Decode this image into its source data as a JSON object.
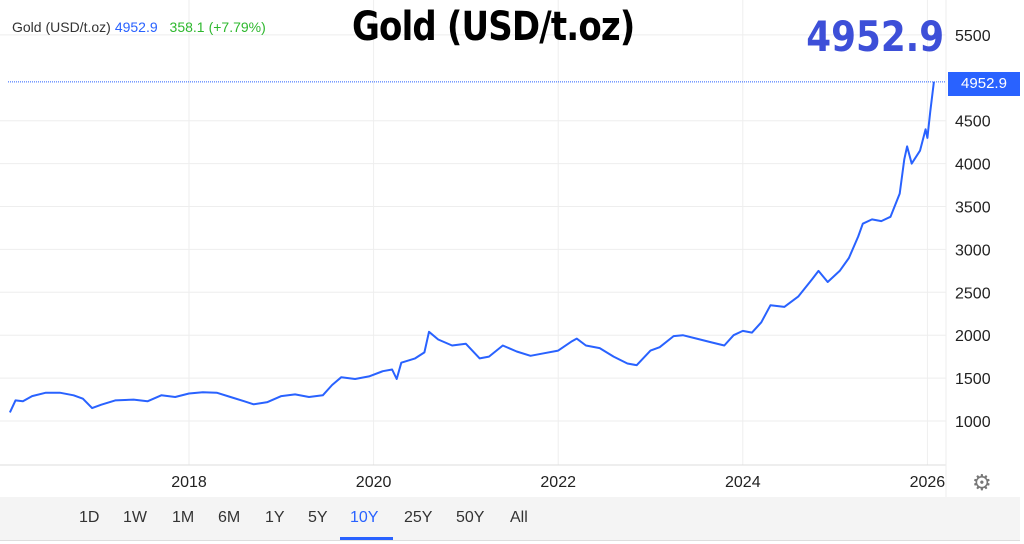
{
  "header": {
    "symbol": "Gold (USD/t.oz)",
    "price": "4952.9",
    "change": "358.1",
    "change_pct": "(+7.79%)",
    "big_title": "Gold (USD/t.oz)",
    "big_price": "4952.9",
    "price_tag": "4952.9"
  },
  "colors": {
    "line": "#2962ff",
    "price": "#2962ff",
    "change": "#2eb82e",
    "big_price": "#3d4fd8"
  },
  "toolbar": {
    "ranges": [
      "1D",
      "1W",
      "1M",
      "6M",
      "1Y",
      "5Y",
      "10Y",
      "25Y",
      "50Y",
      "All"
    ],
    "active": "10Y",
    "settings_icon": "gear-icon"
  },
  "chart_data": {
    "type": "line",
    "title": "Gold (USD/t.oz)",
    "xlabel": "",
    "ylabel": "",
    "xlim": [
      2016.0,
      2026.2
    ],
    "ylim": [
      500,
      5850
    ],
    "x_ticks": [
      "2018",
      "2020",
      "2022",
      "2024",
      "2026"
    ],
    "y_ticks": [
      "1000",
      "1500",
      "2000",
      "2500",
      "3000",
      "3500",
      "4000",
      "4500",
      "5500"
    ],
    "grid": true,
    "last_value": 4952.9,
    "series": [
      {
        "points": [
          [
            2016.06,
            1100
          ],
          [
            2016.12,
            1240
          ],
          [
            2016.2,
            1230
          ],
          [
            2016.3,
            1290
          ],
          [
            2016.45,
            1330
          ],
          [
            2016.6,
            1330
          ],
          [
            2016.75,
            1300
          ],
          [
            2016.85,
            1260
          ],
          [
            2016.95,
            1150
          ],
          [
            2017.05,
            1190
          ],
          [
            2017.2,
            1240
          ],
          [
            2017.4,
            1250
          ],
          [
            2017.55,
            1230
          ],
          [
            2017.7,
            1300
          ],
          [
            2017.85,
            1280
          ],
          [
            2018.0,
            1320
          ],
          [
            2018.15,
            1335
          ],
          [
            2018.3,
            1330
          ],
          [
            2018.45,
            1280
          ],
          [
            2018.6,
            1230
          ],
          [
            2018.7,
            1195
          ],
          [
            2018.85,
            1220
          ],
          [
            2019.0,
            1290
          ],
          [
            2019.15,
            1310
          ],
          [
            2019.3,
            1280
          ],
          [
            2019.45,
            1300
          ],
          [
            2019.55,
            1420
          ],
          [
            2019.65,
            1510
          ],
          [
            2019.8,
            1490
          ],
          [
            2019.95,
            1520
          ],
          [
            2020.1,
            1580
          ],
          [
            2020.2,
            1600
          ],
          [
            2020.25,
            1490
          ],
          [
            2020.3,
            1680
          ],
          [
            2020.45,
            1730
          ],
          [
            2020.55,
            1800
          ],
          [
            2020.6,
            2040
          ],
          [
            2020.7,
            1950
          ],
          [
            2020.85,
            1880
          ],
          [
            2021.0,
            1900
          ],
          [
            2021.15,
            1730
          ],
          [
            2021.25,
            1750
          ],
          [
            2021.4,
            1880
          ],
          [
            2021.55,
            1810
          ],
          [
            2021.7,
            1760
          ],
          [
            2021.85,
            1790
          ],
          [
            2022.0,
            1820
          ],
          [
            2022.15,
            1930
          ],
          [
            2022.2,
            1960
          ],
          [
            2022.3,
            1880
          ],
          [
            2022.45,
            1850
          ],
          [
            2022.6,
            1750
          ],
          [
            2022.75,
            1670
          ],
          [
            2022.85,
            1650
          ],
          [
            2023.0,
            1820
          ],
          [
            2023.1,
            1860
          ],
          [
            2023.25,
            1990
          ],
          [
            2023.35,
            2000
          ],
          [
            2023.5,
            1960
          ],
          [
            2023.65,
            1920
          ],
          [
            2023.8,
            1880
          ],
          [
            2023.9,
            2000
          ],
          [
            2024.0,
            2050
          ],
          [
            2024.1,
            2030
          ],
          [
            2024.2,
            2150
          ],
          [
            2024.3,
            2350
          ],
          [
            2024.45,
            2330
          ],
          [
            2024.6,
            2450
          ],
          [
            2024.75,
            2650
          ],
          [
            2024.82,
            2750
          ],
          [
            2024.92,
            2620
          ],
          [
            2025.05,
            2750
          ],
          [
            2025.15,
            2900
          ],
          [
            2025.25,
            3150
          ],
          [
            2025.3,
            3300
          ],
          [
            2025.4,
            3350
          ],
          [
            2025.5,
            3330
          ],
          [
            2025.6,
            3380
          ],
          [
            2025.7,
            3650
          ],
          [
            2025.75,
            4050
          ],
          [
            2025.78,
            4200
          ],
          [
            2025.83,
            4000
          ],
          [
            2025.92,
            4150
          ],
          [
            2025.98,
            4400
          ],
          [
            2026.0,
            4300
          ],
          [
            2026.03,
            4600
          ],
          [
            2026.07,
            4952.9
          ]
        ]
      }
    ]
  }
}
